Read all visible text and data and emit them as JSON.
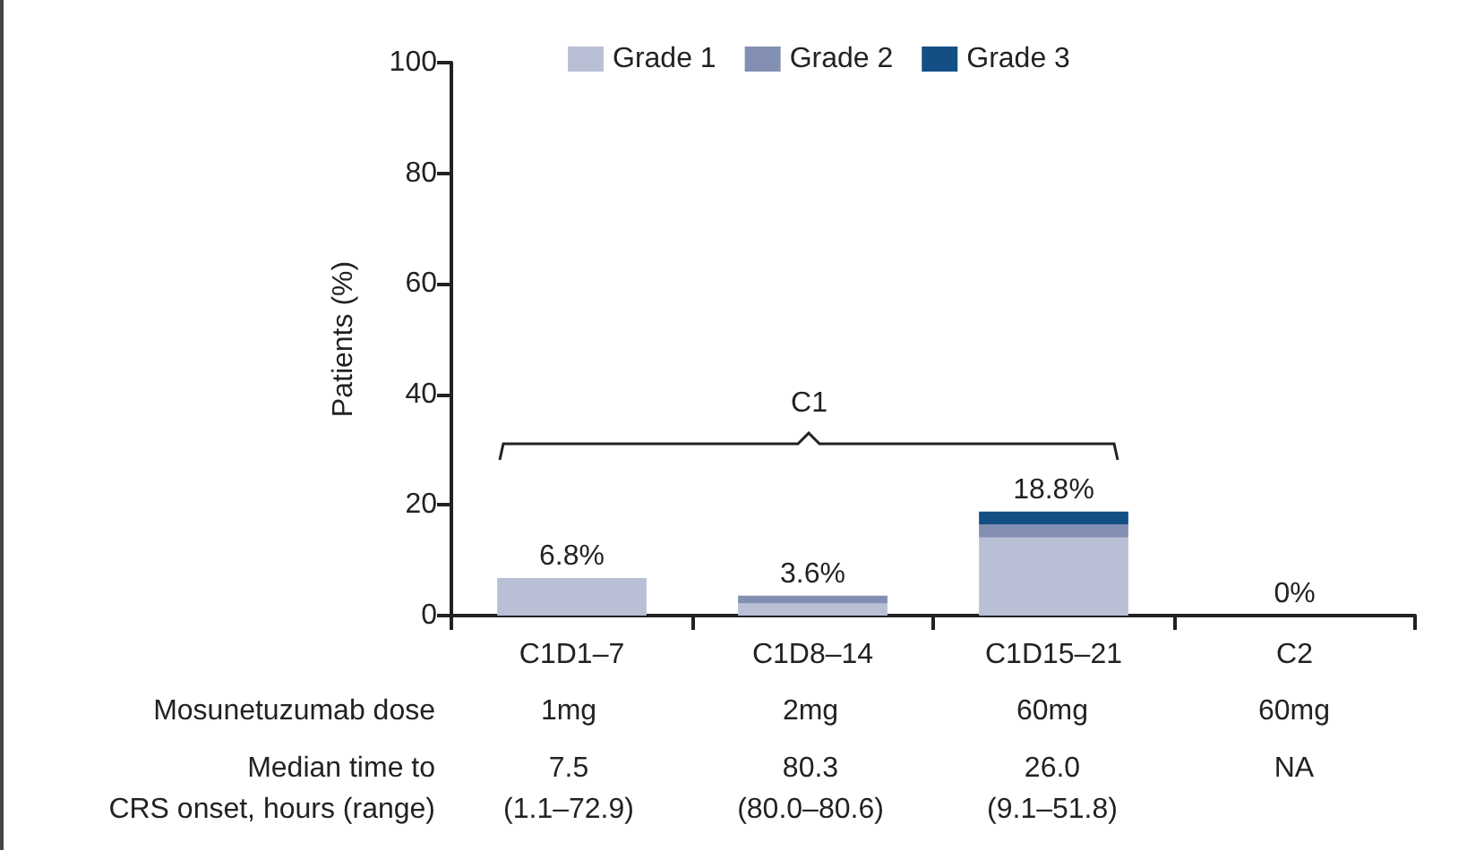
{
  "chart_data": {
    "type": "bar",
    "stacked": true,
    "ylabel": "Patients (%)",
    "categories": [
      "C1D1–7",
      "C1D8–14",
      "C1D15–21",
      "C2"
    ],
    "series": [
      {
        "name": "Grade 1",
        "color": "#b9c0d6",
        "values": [
          6.8,
          2.2,
          14.1,
          0
        ]
      },
      {
        "name": "Grade 2",
        "color": "#8390b3",
        "values": [
          0,
          1.4,
          2.4,
          0
        ]
      },
      {
        "name": "Grade 3",
        "color": "#134f85",
        "values": [
          0,
          0,
          2.3,
          0
        ]
      }
    ],
    "totals": [
      "6.8%",
      "3.6%",
      "18.8%",
      "0%"
    ],
    "ylim": [
      0,
      100
    ],
    "yticks": [
      0,
      20,
      40,
      60,
      80,
      100
    ],
    "grid": false,
    "legend": "top",
    "annotations": [
      "C1",
      "Mosunetuzumab dose",
      "1mg",
      "2mg",
      "60mg",
      "60mg",
      "Median time to\nCRS onset, hours (range)",
      "7.5\n(1.1–72.9)",
      "80.3\n(80.0–80.6)",
      "26.0\n(9.1–51.8)",
      "NA"
    ]
  }
}
